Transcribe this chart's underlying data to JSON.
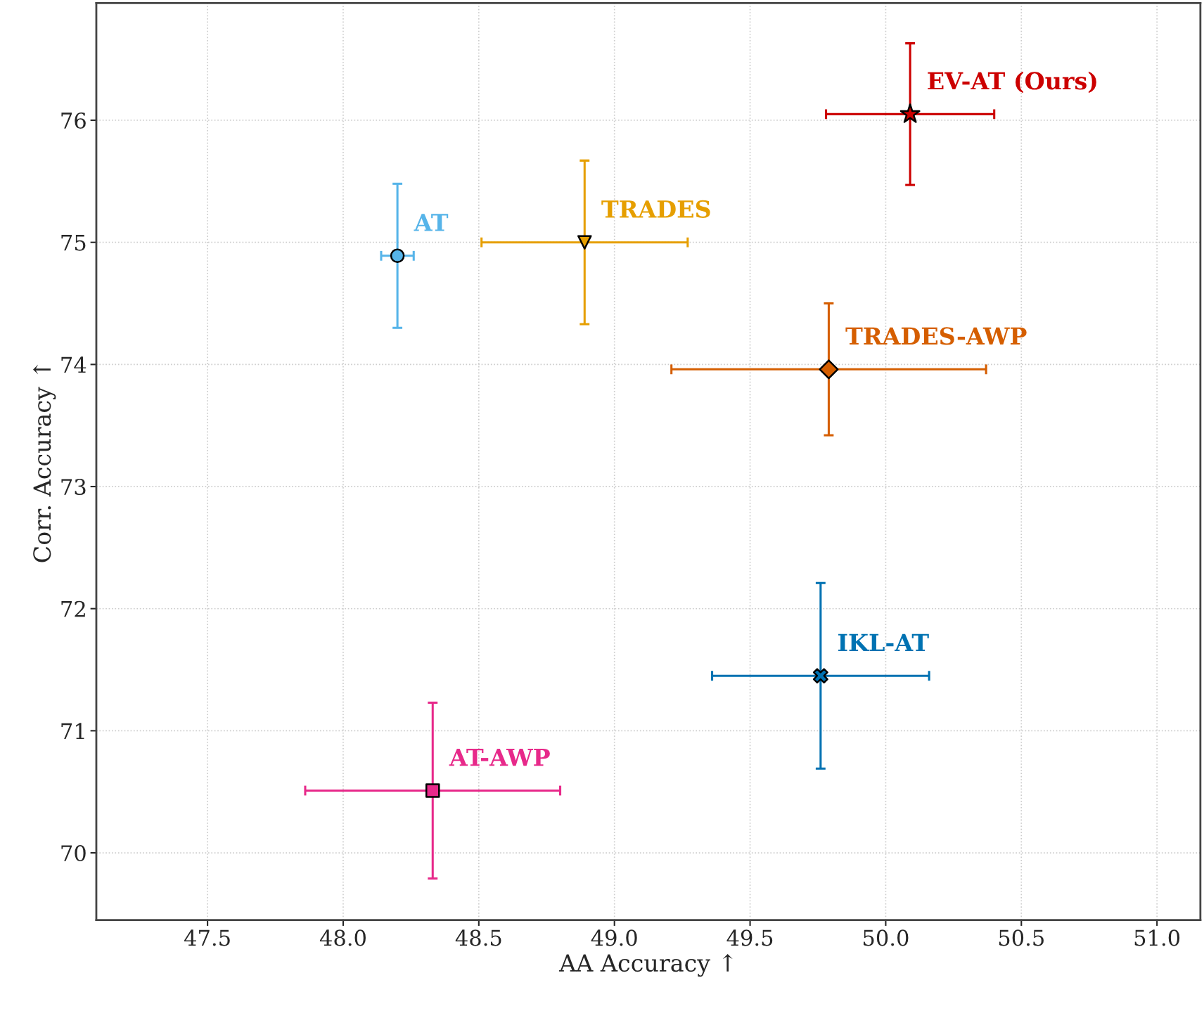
{
  "chart_data": {
    "type": "scatter",
    "xlabel": "AA Accuracy ↑",
    "ylabel": "Corr. Accuracy ↑",
    "xlim": [
      47.09,
      51.16
    ],
    "ylim": [
      69.45,
      76.96
    ],
    "xticks": [
      47.5,
      {
        "value": 48,
        "label": "48.0"
      },
      48.5,
      {
        "value": 49,
        "label": "49.0"
      },
      49.5,
      {
        "value": 50,
        "label": "50.0"
      },
      50.5,
      {
        "value": 51,
        "label": "51.0"
      }
    ],
    "yticks": [
      70,
      71,
      72,
      73,
      74,
      75,
      76
    ],
    "grid": true,
    "legend": false,
    "series": [
      {
        "name": "AT",
        "color": "#56b4e9",
        "marker": "circle",
        "x": [
          48.2
        ],
        "values": [
          74.89
        ],
        "xerrors": [
          0.06
        ],
        "errors": [
          0.59
        ]
      },
      {
        "name": "TRADES",
        "color": "#e69f00",
        "marker": "triangle",
        "x": [
          48.89
        ],
        "values": [
          75.0
        ],
        "xerrors": [
          0.38
        ],
        "errors": [
          0.67
        ]
      },
      {
        "name": "TRADES-AWP",
        "color": "#d55e00",
        "marker": "diamond",
        "x": [
          49.79
        ],
        "values": [
          73.96
        ],
        "xerrors": [
          0.58
        ],
        "errors": [
          0.54
        ]
      },
      {
        "name": "IKL-AT",
        "color": "#0072b2",
        "marker": "cross",
        "x": [
          49.76
        ],
        "values": [
          71.45
        ],
        "xerrors": [
          0.4
        ],
        "errors": [
          0.76
        ]
      },
      {
        "name": "AT-AWP",
        "color": "#e7298a",
        "marker": "square",
        "x": [
          48.33
        ],
        "values": [
          70.51
        ],
        "xerrors": [
          0.47
        ],
        "errors": [
          0.72
        ]
      },
      {
        "name": "EV-AT (Ours)",
        "color": "#cc0000",
        "marker": "star",
        "x": [
          50.09
        ],
        "values": [
          76.05
        ],
        "xerrors": [
          0.31
        ],
        "errors": [
          0.58
        ]
      }
    ]
  }
}
